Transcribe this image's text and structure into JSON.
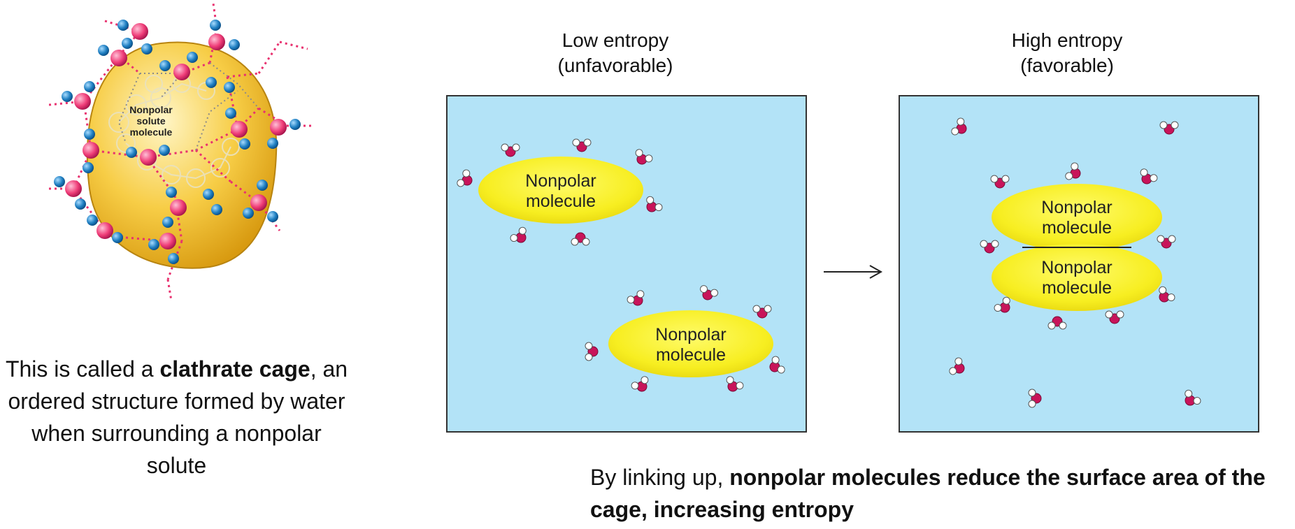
{
  "clathrate": {
    "solute_label": [
      "Nonpolar",
      "solute",
      "molecule"
    ],
    "caption_prefix": "This is called a ",
    "caption_bold": "clathrate cage",
    "caption_suffix": ", an ordered structure formed by water when surrounding a nonpolar solute"
  },
  "panels": {
    "left": {
      "title_line1": "Low entropy",
      "title_line2": "(unfavorable)"
    },
    "right": {
      "title_line1": "High entropy",
      "title_line2": "(favorable)"
    },
    "molecule_label_line1": "Nonpolar",
    "molecule_label_line2": "molecule"
  },
  "bottom_caption": {
    "prefix": "By linking up, ",
    "bold": "nonpolar molecules reduce the surface area of the cage, increasing entropy"
  },
  "colors": {
    "water_blue": "#b3e3f7",
    "ellipse_yellow": "#f7ee21",
    "oxygen": "#c8145a",
    "hydrogen": "#ffffff",
    "cage_yellow": "#f2c335",
    "cage_oxygen": "#ef3d78",
    "cage_hydrogen": "#1f7fc2"
  }
}
